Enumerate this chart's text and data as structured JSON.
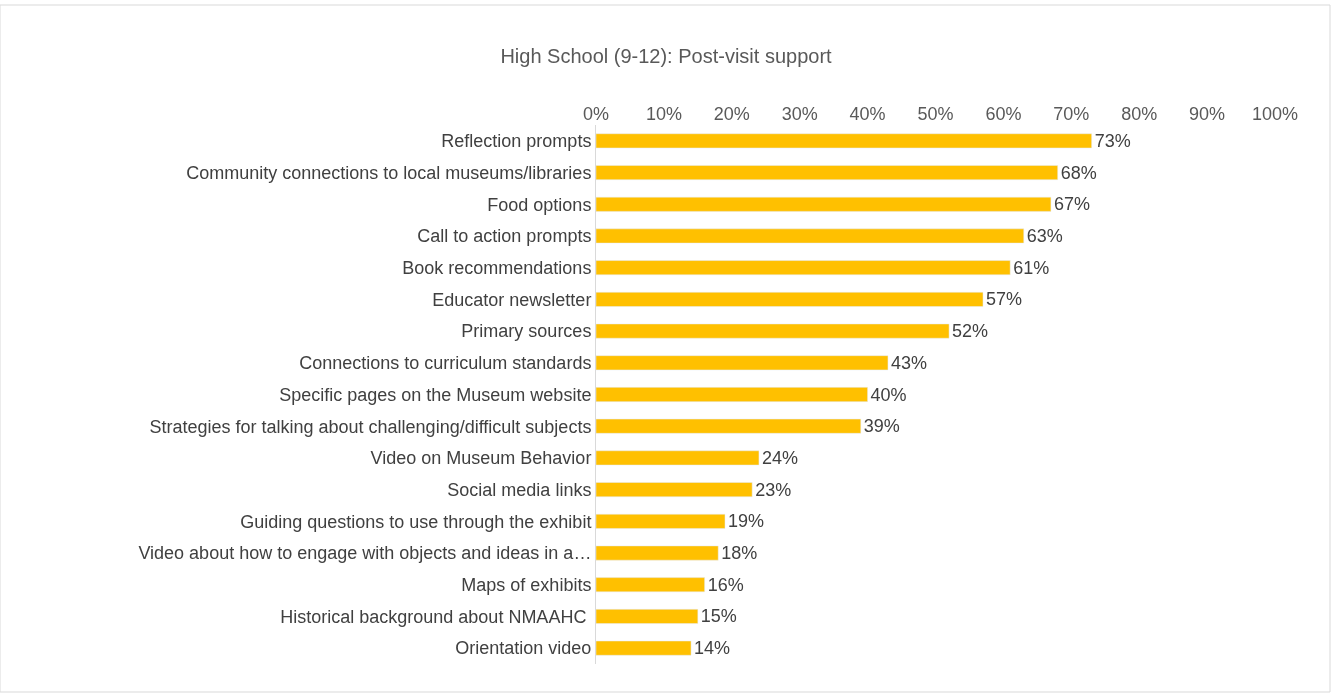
{
  "chart_data": {
    "type": "bar",
    "orientation": "horizontal",
    "title": "High School (9-12): Post-visit support",
    "categories": [
      "Reflection prompts",
      "Community connections to local museums/libraries",
      "Food options",
      "Call to action prompts",
      "Book recommendations",
      "Educator newsletter",
      "Primary sources",
      "Connections to curriculum standards",
      "Specific pages on the Museum website",
      "Strategies for talking about challenging/difficult subjects",
      "Video on Museum Behavior",
      "Social media links",
      "Guiding questions to use through the exhibit",
      "Video about how to engage with objects and ideas in a…",
      "Maps of exhibits",
      "Historical background about NMAAHC ",
      "Orientation video"
    ],
    "values": [
      73,
      68,
      67,
      63,
      61,
      57,
      52,
      43,
      40,
      39,
      24,
      23,
      19,
      18,
      16,
      15,
      14
    ],
    "value_labels": [
      "73%",
      "68%",
      "67%",
      "63%",
      "61%",
      "57%",
      "52%",
      "43%",
      "40%",
      "39%",
      "24%",
      "23%",
      "19%",
      "18%",
      "16%",
      "15%",
      "14%"
    ],
    "color": "#ffc000",
    "xlim": [
      0,
      100
    ],
    "xticks": [
      {
        "value": 0,
        "label": "0%"
      },
      {
        "value": 10,
        "label": "10%"
      },
      {
        "value": 20,
        "label": "20%"
      },
      {
        "value": 30,
        "label": "30%"
      },
      {
        "value": 40,
        "label": "40%"
      },
      {
        "value": 50,
        "label": "50%"
      },
      {
        "value": 60,
        "label": "60%"
      },
      {
        "value": 70,
        "label": "70%"
      },
      {
        "value": 80,
        "label": "80%"
      },
      {
        "value": 90,
        "label": "90%"
      },
      {
        "value": 100,
        "label": "100%"
      }
    ],
    "legend": false
  }
}
